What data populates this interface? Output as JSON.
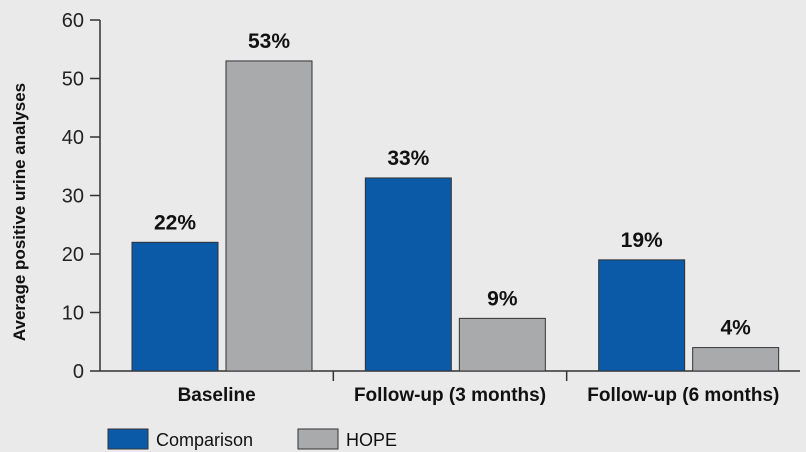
{
  "chart_data": {
    "type": "bar",
    "ylabel": "Average positive urine analyses",
    "ylim": [
      0,
      60
    ],
    "yticks": [
      0,
      10,
      20,
      30,
      40,
      50,
      60
    ],
    "categories": [
      "Baseline",
      "Follow-up (3 months)",
      "Follow-up (6 months)"
    ],
    "series": [
      {
        "name": "Comparison",
        "values": [
          22,
          33,
          19
        ],
        "labels": [
          "22%",
          "33%",
          "19%"
        ],
        "color": "#0a5aa8"
      },
      {
        "name": "HOPE",
        "values": [
          53,
          9,
          4
        ],
        "labels": [
          "53%",
          "9%",
          "4%"
        ],
        "color": "#a9aaac"
      }
    ],
    "legend_position": "bottom-left",
    "grid": false
  }
}
